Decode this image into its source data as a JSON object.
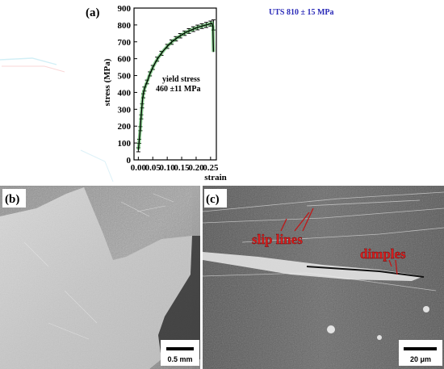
{
  "panels": {
    "a": {
      "label": "(a)"
    },
    "b": {
      "label": "(b)",
      "scale_bar": "0.5 mm"
    },
    "c": {
      "label": "(c)",
      "scale_bar": "20 μm",
      "annotations": {
        "slip": "slip lines",
        "dimples": "dimples"
      }
    }
  },
  "chart_data": {
    "type": "line",
    "xlabel": "strain",
    "ylabel": "stress (MPa)",
    "xlim": [
      -0.015,
      0.27
    ],
    "ylim": [
      0,
      900
    ],
    "x_ticks": [
      0.0,
      0.05,
      0.1,
      0.15,
      0.2,
      0.25
    ],
    "x_tick_labels": [
      "0.00",
      "0.05",
      "0.10",
      "0.15",
      "0.20",
      "0.25"
    ],
    "y_ticks": [
      0,
      100,
      200,
      300,
      400,
      500,
      600,
      700,
      800,
      900
    ],
    "y_tick_labels": [
      "0",
      "100",
      "200",
      "300",
      "400",
      "500",
      "600",
      "700",
      "800",
      "900"
    ],
    "series": [
      {
        "x": [
          0.0,
          0.003,
          0.006,
          0.009,
          0.012,
          0.015,
          0.018,
          0.021,
          0.025,
          0.03,
          0.035,
          0.04,
          0.05,
          0.06,
          0.07,
          0.08,
          0.09,
          0.1,
          0.11,
          0.12,
          0.13,
          0.14,
          0.15,
          0.16,
          0.17,
          0.18,
          0.19,
          0.2,
          0.21,
          0.22,
          0.23,
          0.24,
          0.25,
          0.255,
          0.258,
          0.26
        ],
        "y": [
          60,
          110,
          170,
          245,
          310,
          365,
          400,
          420,
          440,
          462,
          485,
          510,
          548,
          580,
          608,
          632,
          654,
          673,
          690,
          705,
          718,
          730,
          741,
          751,
          760,
          768,
          775,
          782,
          788,
          793,
          798,
          802,
          808,
          810,
          790,
          640
        ]
      }
    ],
    "error_bars": {
      "x": [
        0.0,
        0.003,
        0.007,
        0.01,
        0.013,
        0.017,
        0.021,
        0.03,
        0.04,
        0.05,
        0.065,
        0.08,
        0.1,
        0.115,
        0.13,
        0.145,
        0.16,
        0.175,
        0.19,
        0.205,
        0.22,
        0.235,
        0.25,
        0.26
      ],
      "y": [
        60,
        110,
        185,
        255,
        320,
        380,
        420,
        462,
        510,
        548,
        597,
        632,
        673,
        698,
        718,
        736,
        751,
        764,
        775,
        785,
        793,
        800,
        808,
        800
      ],
      "err": [
        12,
        12,
        12,
        12,
        12,
        12,
        12,
        11,
        12,
        12,
        12,
        12,
        12,
        13,
        13,
        13,
        13,
        14,
        14,
        14,
        14,
        15,
        15,
        30
      ]
    },
    "annotations": {
      "yield_line1": "yield stress",
      "yield_line2": "460 ±11 MPa",
      "uts": "UTS 810 ± 15 MPa"
    },
    "colors": {
      "curve": "#000000",
      "halo": "#3fb34a",
      "uts_text": "#2b2bb8",
      "annotation_red": "#d82020"
    }
  }
}
